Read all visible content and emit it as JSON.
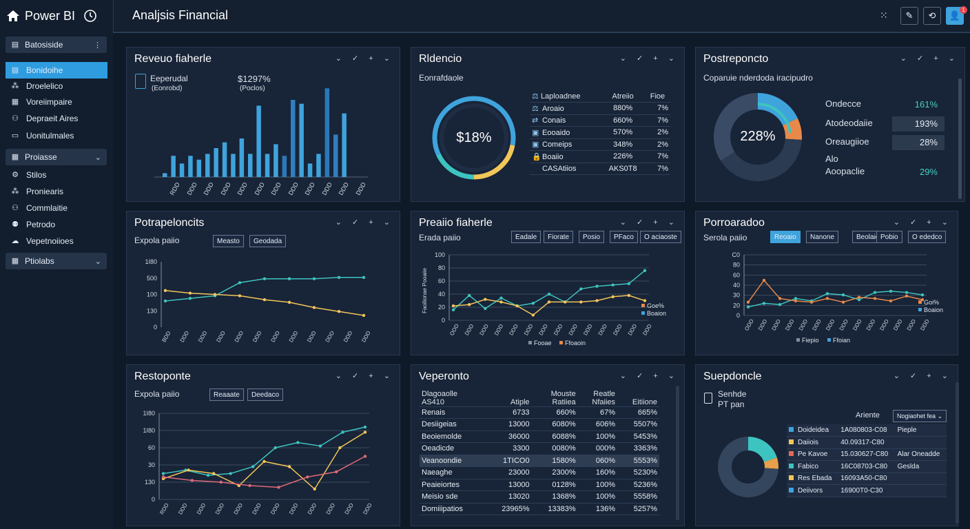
{
  "app": {
    "brand": "Power BI",
    "window_title": "Analjsis Financial"
  },
  "colors": {
    "accent": "#3fa3dc",
    "teal": "#3ec4c0",
    "yellow": "#f3c65a",
    "orange": "#e8894a",
    "bg": "#0f1a29",
    "panel": "#182437"
  },
  "sidebar": {
    "top_button": "Batosiside",
    "items": [
      {
        "label": "Bonidoihe",
        "icon": "database-icon",
        "active": true
      },
      {
        "label": "Droelelico",
        "icon": "sitemap-icon"
      },
      {
        "label": "Voreiimpaire",
        "icon": "document-icon"
      },
      {
        "label": "Depraeit Aires",
        "icon": "people-icon"
      },
      {
        "label": "Uonitulmales",
        "icon": "folder-icon"
      }
    ],
    "group1": "Proiasse",
    "items2": [
      {
        "label": "Stilos",
        "icon": "sliders-icon"
      },
      {
        "label": "Proniearis",
        "icon": "grid-icon"
      },
      {
        "label": "Commlaitie",
        "icon": "person-icon"
      },
      {
        "label": "Petrodo",
        "icon": "people-icon"
      },
      {
        "label": "Vepetnoiioes",
        "icon": "cloud-icon"
      }
    ],
    "group2": "Ptiolabs"
  },
  "toolbar": {
    "icons": [
      "expand-icon",
      "edit-icon",
      "refresh-icon",
      "user-icon"
    ],
    "badge": "1"
  },
  "panel_tools": "⌄ ✓ + ⌄",
  "p1": {
    "title": "Reveuo fiaherle",
    "kpi1_label": "Eeperudal",
    "kpi1_sub": "(Eonrobd)",
    "kpi2_value": "$1297%",
    "kpi2_sub": "(Poclos)",
    "ticks": [
      "RDD",
      "DDD",
      "DDD",
      "DDD",
      "DDD",
      "DDD",
      "DDD",
      "DDD",
      "DDD",
      "DDD",
      "DDD",
      "DDD"
    ]
  },
  "p2": {
    "title": "Rldencio",
    "subtitle": "Eonrafdaole",
    "donut_value": "$18%",
    "headers": [
      "Laploadnee",
      "Atreiio",
      "Fioe"
    ],
    "rows": [
      {
        "icon": "scale-icon",
        "name": "Aroaio",
        "v1": "880%",
        "v2": "7%"
      },
      {
        "icon": "arrows-icon",
        "name": "Conais",
        "v1": "660%",
        "v2": "7%"
      },
      {
        "icon": "box-icon",
        "name": "Eooaido",
        "v1": "570%",
        "v2": "2%"
      },
      {
        "icon": "box-icon",
        "name": "Comeips",
        "v1": "348%",
        "v2": "2%"
      },
      {
        "icon": "lock-icon",
        "name": "Boaiio",
        "v1": "226%",
        "v2": "7%"
      },
      {
        "icon": "",
        "name": "CASAtiios",
        "v1": "AKS0T8",
        "v2": "7%"
      }
    ]
  },
  "p3": {
    "title": "Postreponcto",
    "subtitle": "Coparuie nderdoda iracipudro",
    "donut_value": "228%",
    "rows": [
      {
        "label": "Ondecce",
        "value": "161%"
      },
      {
        "label": "Atodeodaiie",
        "value": "193%"
      },
      {
        "label": "Oreaugiioe",
        "value": "28%"
      },
      {
        "label": "Alo",
        "value": ""
      },
      {
        "label": "Aoopaclie",
        "value": "29%"
      }
    ]
  },
  "p4": {
    "title": "Potrapeloncits",
    "subtitle": "Expola paiio",
    "pills": [
      "Measto",
      "Geodada"
    ],
    "yticks": [
      "1I80",
      "500",
      "100",
      "130",
      "0"
    ],
    "xticks": [
      "BDD",
      "DDD",
      "DDD",
      "DDD",
      "DDD",
      "DDD",
      "DDD",
      "DDD",
      "DDD",
      "DDD",
      "DDD",
      "DDD"
    ]
  },
  "p5": {
    "title": "Preaiio fiaherle",
    "subtitle": "Erada paiio",
    "pills": [
      "Eadale",
      "Fiorate",
      "Posio",
      "PFaco",
      "O aciaoste"
    ],
    "yticks": [
      "100",
      "80",
      "60",
      "40",
      "20",
      "0"
    ],
    "yaxis": "Faoilionae Pooaiie",
    "xticks": [
      "ODD",
      "DDD",
      "DDD",
      "DDD",
      "DDD",
      "DDD",
      "DDD",
      "DDD",
      "DDD",
      "DDD",
      "DDD",
      "DDD",
      "DDD",
      "DDD"
    ],
    "legend": [
      "Fooae",
      "Ffoaoin"
    ],
    "legend_right": [
      "Goe%",
      "Boaion"
    ]
  },
  "p6": {
    "title": "Porroaradoo",
    "subtitle": "Serola paiio",
    "pills": [
      "Reoaio",
      "Nanone",
      "Beolaie",
      "Pobio",
      "O ededco"
    ],
    "yticks": [
      "C0",
      "80",
      "60",
      "40",
      "30",
      "20",
      "0"
    ],
    "xticks": [
      "ODD",
      "DDD",
      "DDD",
      "DDD",
      "DDD",
      "DDD",
      "DDD",
      "DDD",
      "DDD",
      "DDD",
      "DDD",
      "DDD",
      "DDD",
      "DDD"
    ],
    "legend": [
      "Fiepio",
      "Ffoian"
    ],
    "legend_right": [
      "Goi%",
      "Boaion"
    ]
  },
  "p7": {
    "title": "Restoponte",
    "subtitle": "Expola paiio",
    "pills": [
      "Reaaate",
      "Deedaco"
    ],
    "yticks": [
      "1I80",
      "1I80",
      "60",
      "30",
      "130",
      "0"
    ],
    "xticks": [
      "RDD",
      "DDD",
      "DDD",
      "DDD",
      "DDD",
      "DDD",
      "DDD",
      "DDD",
      "DDD",
      "DDD",
      "DDD",
      "DDD"
    ]
  },
  "p8": {
    "title": "Veperonto",
    "headers": [
      [
        "Dlagoaolle",
        "AS410"
      ],
      [
        "",
        "Atiple"
      ],
      [
        "Mouste",
        "Ratiiea"
      ],
      [
        "Reatle",
        "Nfaiies"
      ],
      [
        "",
        "Eitiione"
      ]
    ],
    "rows": [
      [
        "Renais",
        "6733",
        "660%",
        "67%",
        "665%"
      ],
      [
        "Desiigeias",
        "13000",
        "6080%",
        "606%",
        "5507%"
      ],
      [
        "Beoiemolde",
        "36000",
        "6088%",
        "100%",
        "5453%"
      ],
      [
        "Oeadicde",
        "3300",
        "0080%",
        "000%",
        "3363%"
      ],
      [
        "Veanoondie",
        "1TICO0",
        "1580%",
        "060%",
        "5553%"
      ],
      [
        "Naeaghe",
        "23000",
        "2300%",
        "160%",
        "5230%"
      ],
      [
        "Peaieiortes",
        "13000",
        "0128%",
        "100%",
        "5236%"
      ],
      [
        "Meisio sde",
        "13020",
        "1368%",
        "100%",
        "5558%"
      ],
      [
        "Domiiipatios",
        "23965%",
        "13383%",
        "136%",
        "5257%"
      ]
    ]
  },
  "p9": {
    "title": "Suepdoncle",
    "kpi_label": "Senhde",
    "kpi_sub": "PT pan",
    "col1": "Ariente",
    "col2": "Nogiaohet fea",
    "rows": [
      {
        "color": "#3fa3dc",
        "name": "Doideidea",
        "value": "1A080803-C08",
        "note": "Pieple"
      },
      {
        "color": "#f3c65a",
        "name": "Daiiois",
        "value": "40.09317-C80",
        "note": ""
      },
      {
        "color": "#e06a5a",
        "name": "Pe Kavoe",
        "value": "15.030627-C80",
        "note": "Alar Oneadde"
      },
      {
        "color": "#3ec4c0",
        "name": "Fabico",
        "value": "16C08703-C80",
        "note": "Geslda"
      },
      {
        "color": "#f3c65a",
        "name": "Res Ebada",
        "value": "16093A50-C80",
        "note": ""
      },
      {
        "color": "#3fa3dc",
        "name": "Deiivors",
        "value": "16900T0-C30",
        "note": ""
      }
    ]
  },
  "chart_data": [
    {
      "type": "bar",
      "title": "Reveuo fiaherle",
      "values": [
        4,
        22,
        14,
        22,
        18,
        24,
        30,
        36,
        24,
        40,
        24,
        74,
        24,
        34,
        22,
        80,
        76,
        14,
        24,
        92,
        44,
        66
      ],
      "ylim": [
        0,
        100
      ]
    },
    {
      "type": "line",
      "title": "Potrapeloncits",
      "series": [
        {
          "values": [
            40,
            44,
            48,
            68,
            74,
            74,
            74,
            76,
            76
          ]
        },
        {
          "values": [
            56,
            52,
            50,
            48,
            42,
            38,
            30,
            24,
            18
          ]
        }
      ]
    },
    {
      "type": "line",
      "title": "Preaiio fiaherle",
      "series": [
        {
          "name": "Fooae",
          "values": [
            16,
            38,
            18,
            34,
            22,
            26,
            40,
            28,
            48,
            52,
            54,
            56,
            76
          ]
        },
        {
          "name": "Ffoaoin",
          "values": [
            22,
            24,
            32,
            28,
            22,
            8,
            28,
            28,
            28,
            30,
            36,
            38,
            30
          ]
        }
      ]
    },
    {
      "type": "line",
      "title": "Porroaradoo",
      "series": [
        {
          "name": "Fiepio",
          "values": [
            14,
            20,
            18,
            28,
            24,
            36,
            34,
            26,
            38,
            40,
            38,
            34
          ]
        },
        {
          "name": "Ffoian",
          "values": [
            22,
            58,
            28,
            24,
            22,
            28,
            22,
            30,
            28,
            24,
            32,
            26
          ]
        }
      ]
    },
    {
      "type": "line",
      "title": "Restoponte",
      "series": [
        {
          "values": [
            30,
            34,
            28,
            30,
            38,
            60,
            66,
            62,
            78,
            84
          ]
        },
        {
          "values": [
            24,
            34,
            30,
            16,
            44,
            38,
            12,
            60,
            78
          ]
        },
        {
          "values": [
            26,
            22,
            20,
            16,
            14,
            26,
            32,
            50
          ]
        }
      ]
    },
    {
      "type": "pie",
      "title": "Rldencio",
      "values": [
        28,
        22,
        18,
        32
      ]
    },
    {
      "type": "pie",
      "title": "Postreponcto",
      "values": [
        18,
        8,
        40,
        34
      ]
    },
    {
      "type": "pie",
      "title": "Suepdoncle",
      "values": [
        20,
        6,
        74
      ]
    }
  ]
}
